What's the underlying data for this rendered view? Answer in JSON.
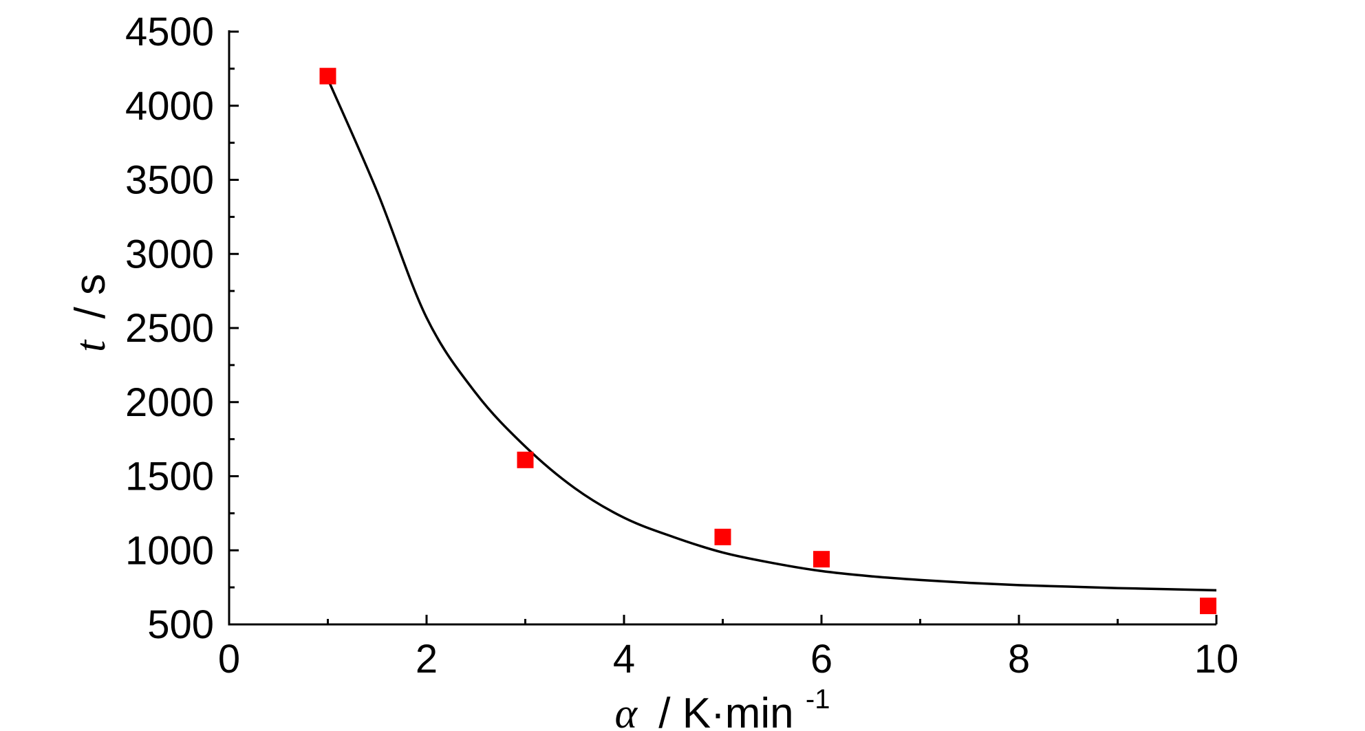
{
  "chart_data": {
    "type": "scatter",
    "title": "",
    "xlabel": {
      "symbol": "α",
      "unit": "/ K·min",
      "exponent": "-1"
    },
    "ylabel": {
      "symbol": "t",
      "unit": "/ s"
    },
    "xlim": [
      0,
      10
    ],
    "ylim": [
      500,
      4500
    ],
    "xticks": [
      "0",
      "2",
      "4",
      "6",
      "8",
      "10"
    ],
    "yticks": [
      "500",
      "1000",
      "1500",
      "2000",
      "2500",
      "3000",
      "3500",
      "4000",
      "4500"
    ],
    "grid": false,
    "legend": "none",
    "series": [
      {
        "kind": "scatter",
        "marker": "square",
        "color": "#ff0000",
        "x": [
          1,
          3,
          5,
          6,
          10
        ],
        "y": [
          4200,
          1610,
          1090,
          940,
          625
        ]
      },
      {
        "kind": "fit-curve",
        "color": "#000000",
        "x": [
          1,
          1.5,
          2,
          2.5,
          3,
          3.5,
          4,
          4.5,
          5,
          5.5,
          6,
          6.5,
          7,
          7.5,
          8,
          8.5,
          9,
          9.5,
          10
        ],
        "y": [
          4180,
          3420,
          2570,
          2060,
          1700,
          1420,
          1220,
          1090,
          985,
          915,
          860,
          825,
          800,
          780,
          765,
          755,
          745,
          738,
          730
        ]
      }
    ]
  }
}
